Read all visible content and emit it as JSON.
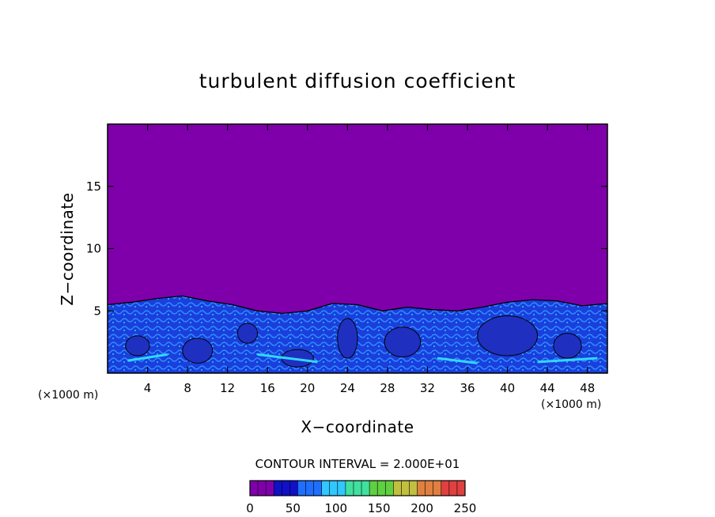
{
  "chart_data": {
    "type": "heatmap",
    "title": "turbulent diffusion coefficient",
    "xlabel": "X−coordinate",
    "ylabel": "Z−coordinate",
    "x_unit_left": "(×1000 m)",
    "x_unit_right": "(×1000 m)",
    "xlim": [
      0,
      50
    ],
    "ylim": [
      0,
      20
    ],
    "x_ticks": [
      4,
      8,
      12,
      16,
      20,
      24,
      28,
      32,
      36,
      40,
      44,
      48
    ],
    "y_ticks": [
      5,
      10,
      15
    ],
    "background_value": 0,
    "background_color": "#7f00aa",
    "turbulent_layer_top_km": [
      5.5,
      5.7,
      6.0,
      6.2,
      5.8,
      5.5,
      5.0,
      4.8,
      5.0,
      5.6,
      5.5,
      5.0,
      5.3,
      5.1,
      5.0,
      5.3,
      5.7,
      5.9,
      5.8,
      5.4,
      5.6
    ],
    "turbulent_layer_top_x": [
      0,
      2.5,
      5,
      7.5,
      10,
      12.5,
      15,
      17.5,
      20,
      22.5,
      25,
      27.5,
      30,
      32.5,
      35,
      37.5,
      40,
      42.5,
      45,
      47.5,
      50
    ],
    "contour_interval": "CONTOUR INTERVAL = 2.000E+01",
    "colorbar": {
      "min": 0,
      "max": 250,
      "tick_labels": [
        "0",
        "50",
        "100",
        "150",
        "200",
        "250"
      ],
      "tick_values": [
        0,
        50,
        100,
        150,
        200,
        250
      ],
      "colors": [
        "#7f00aa",
        "#1010c8",
        "#1f6fff",
        "#30c8ff",
        "#40e0a0",
        "#60d040",
        "#c0c040",
        "#e08040",
        "#e04040"
      ]
    }
  }
}
